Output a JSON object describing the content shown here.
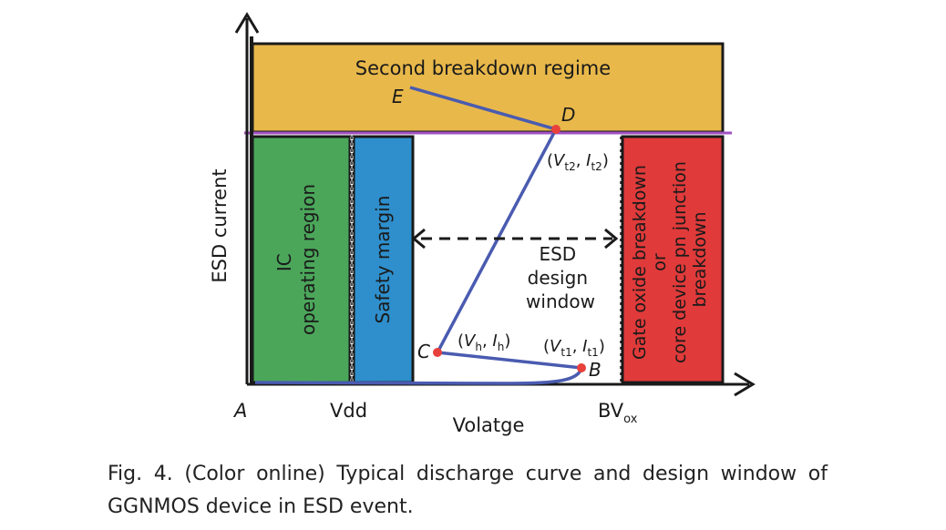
{
  "colors": {
    "top_band": "#E8B84A",
    "ic_region": "#4BA65A",
    "safety_margin": "#2E8FCC",
    "breakdown_region": "#E03A3A",
    "curve": "#4A5BB0",
    "point": "#E8403A",
    "boundary_line": "#A050C0",
    "axis": "#1a1a1a"
  },
  "axes": {
    "y_label": "ESD current",
    "x_label": "Volatge",
    "origin_label": "A",
    "x_tick_vdd": "Vdd",
    "x_tick_bvox_main": "BV",
    "x_tick_bvox_sub": "ox"
  },
  "regions": {
    "top": "Second breakdown regime",
    "ic_line1": "IC",
    "ic_line2": "operating region",
    "safety": "Safety margin",
    "breakdown_line1": "Gate oxide breakdown",
    "breakdown_line2": "or",
    "breakdown_line3": "core device pn junction",
    "breakdown_line4": "breakdown",
    "window_line1": "ESD",
    "window_line2": "design",
    "window_line3": "window"
  },
  "points": {
    "B": "B",
    "C": "C",
    "D": "D",
    "E": "E"
  },
  "coords": {
    "t2_V": "V",
    "t2_Vsub": "t2",
    "t2_I": "I",
    "t2_Isub": "t2",
    "h_V": "V",
    "h_Vsub": "h",
    "h_I": "I",
    "h_Isub": "h",
    "t1_V": "V",
    "t1_Vsub": "t1",
    "t1_I": "I",
    "t1_Isub": "t1"
  },
  "caption": "Fig. 4. (Color online) Typical discharge curve and design window of GGNMOS device in ESD event."
}
